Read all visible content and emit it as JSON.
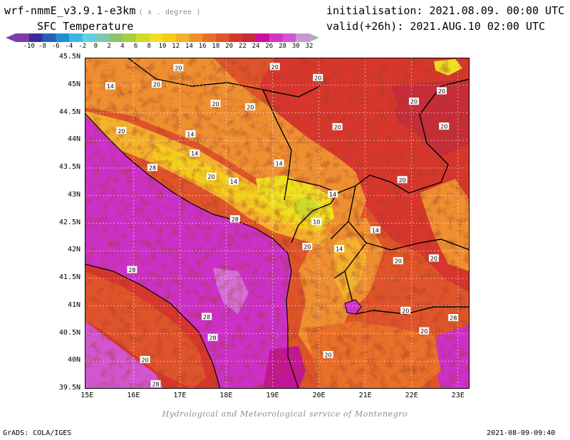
{
  "header": {
    "model": "wrf-nmmE_v3.9.1-e3km",
    "units_note": "( x . degree )",
    "variable": "SFC Temperature",
    "initialisation": "initialisation: 2021.08.09. 00:00 UTC",
    "valid": "valid(+26h): 2021.AUG.10 02:00 UTC"
  },
  "colorbar": {
    "ticks": [
      "-10",
      "-8",
      "-6",
      "-4",
      "-2",
      "0",
      "2",
      "4",
      "6",
      "8",
      "10",
      "12",
      "14",
      "16",
      "18",
      "20",
      "22",
      "24",
      "26",
      "28",
      "30",
      "32"
    ],
    "colors": [
      "#7b3ea6",
      "#3a2d9c",
      "#2463b3",
      "#1e8fd0",
      "#38b8e6",
      "#64cfe0",
      "#7fc7b1",
      "#8cc36b",
      "#a6cf3e",
      "#cddc2a",
      "#eee020",
      "#f3cc1c",
      "#f4b12b",
      "#ef9030",
      "#e87028",
      "#e0542a",
      "#d8362c",
      "#c62c39",
      "#cc109c",
      "#d234c9",
      "#d256d2",
      "#c898d0"
    ]
  },
  "map": {
    "lat_labels": [
      "45.5N",
      "45N",
      "44.5N",
      "44N",
      "43.5N",
      "43N",
      "42.5N",
      "42N",
      "41.5N",
      "41N",
      "40.5N",
      "40N",
      "39.5N"
    ],
    "lon_labels": [
      "15E",
      "16E",
      "17E",
      "18E",
      "19E",
      "20E",
      "21E",
      "22E",
      "23E"
    ],
    "contour_labels": [
      {
        "text": "14",
        "lon": 15.5,
        "lat": 44.99
      },
      {
        "text": "20",
        "lon": 16.5,
        "lat": 45.02
      },
      {
        "text": "20",
        "lon": 16.97,
        "lat": 45.32
      },
      {
        "text": "20",
        "lon": 19.05,
        "lat": 45.34
      },
      {
        "text": "20",
        "lon": 19.98,
        "lat": 45.14
      },
      {
        "text": "20",
        "lon": 17.77,
        "lat": 44.67
      },
      {
        "text": "20",
        "lon": 18.52,
        "lat": 44.61
      },
      {
        "text": "20",
        "lon": 15.74,
        "lat": 44.18
      },
      {
        "text": "14",
        "lon": 17.23,
        "lat": 44.12
      },
      {
        "text": "14",
        "lon": 17.32,
        "lat": 43.77
      },
      {
        "text": "14",
        "lon": 19.14,
        "lat": 43.59
      },
      {
        "text": "20",
        "lon": 17.68,
        "lat": 43.35
      },
      {
        "text": "14",
        "lon": 18.16,
        "lat": 43.26
      },
      {
        "text": "20",
        "lon": 20.4,
        "lat": 44.25
      },
      {
        "text": "20",
        "lon": 22.65,
        "lat": 44.9
      },
      {
        "text": "20",
        "lon": 22.05,
        "lat": 44.71
      },
      {
        "text": "20",
        "lon": 22.7,
        "lat": 44.26
      },
      {
        "text": "28",
        "lon": 16.41,
        "lat": 43.51
      },
      {
        "text": "28",
        "lon": 18.19,
        "lat": 42.58
      },
      {
        "text": "14",
        "lon": 20.3,
        "lat": 43.03
      },
      {
        "text": "20",
        "lon": 21.8,
        "lat": 43.29
      },
      {
        "text": "10",
        "lon": 19.95,
        "lat": 42.53
      },
      {
        "text": "20",
        "lon": 19.75,
        "lat": 42.08
      },
      {
        "text": "14",
        "lon": 21.22,
        "lat": 42.38
      },
      {
        "text": "14",
        "lon": 20.44,
        "lat": 42.04
      },
      {
        "text": "20",
        "lon": 21.71,
        "lat": 41.82
      },
      {
        "text": "20",
        "lon": 22.48,
        "lat": 41.87
      },
      {
        "text": "28",
        "lon": 15.97,
        "lat": 41.66
      },
      {
        "text": "28",
        "lon": 17.58,
        "lat": 40.81
      },
      {
        "text": "28",
        "lon": 17.71,
        "lat": 40.43
      },
      {
        "text": "20",
        "lon": 21.87,
        "lat": 40.92
      },
      {
        "text": "20",
        "lon": 22.27,
        "lat": 40.55
      },
      {
        "text": "28",
        "lon": 22.9,
        "lat": 40.79
      },
      {
        "text": "20",
        "lon": 16.25,
        "lat": 40.03
      },
      {
        "text": "20",
        "lon": 20.2,
        "lat": 40.12
      },
      {
        "text": "28",
        "lon": 16.48,
        "lat": 39.59
      }
    ]
  },
  "footer": {
    "credit": "Hydrological and Meteorological service of Montenegro",
    "software": "GrADS: COLA/IGES",
    "timestamp": "2021-08-09-09:40"
  }
}
